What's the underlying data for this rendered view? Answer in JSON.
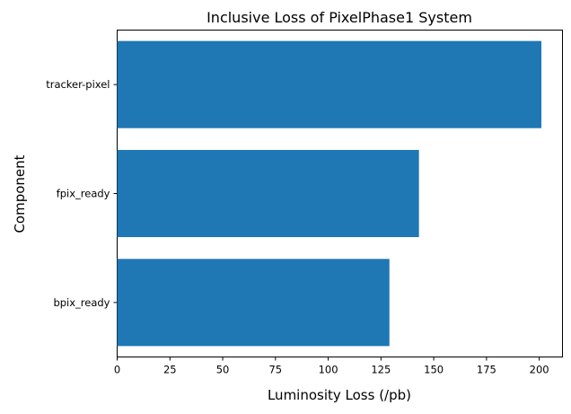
{
  "chart_data": {
    "type": "bar",
    "orientation": "horizontal",
    "title": "Inclusive Loss of PixelPhase1 System",
    "xlabel": "Luminosity Loss (/pb)",
    "ylabel": "Component",
    "categories": [
      "bpix_ready",
      "fpix_ready",
      "tracker-pixel"
    ],
    "values": [
      129,
      143,
      201
    ],
    "xlim": [
      0,
      211
    ],
    "xticks": [
      0,
      25,
      50,
      75,
      100,
      125,
      150,
      175,
      200
    ],
    "bar_color": "#1f77b4",
    "grid": false
  }
}
